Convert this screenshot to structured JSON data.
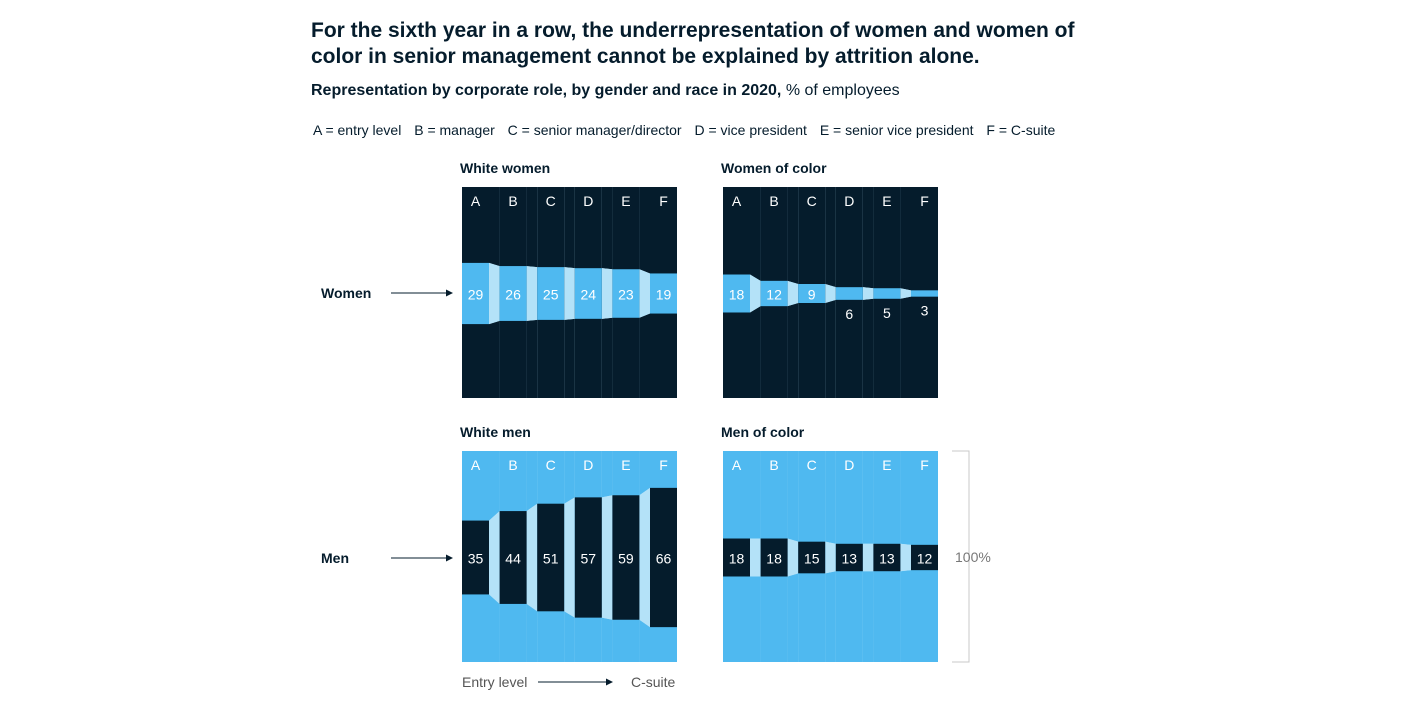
{
  "headline": "For the sixth year in a row, the underrepresentation of women and women of color in senior management cannot be explained by attrition alone.",
  "subtitle_bold": "Representation by corporate role, by gender and race in 2020,",
  "subtitle_unit": " % of employees",
  "key": [
    "A = entry level",
    "B = manager",
    "C = senior manager/director",
    "D = vice president",
    "E = senior vice president",
    "F = C-suite"
  ],
  "colors": {
    "dark": "#051c2c",
    "blue": "#4fb9f0",
    "pale": "#b4e2f8",
    "gray": "#999999"
  },
  "chart_data": {
    "type": "bar",
    "categories": [
      "A",
      "B",
      "C",
      "D",
      "E",
      "F"
    ],
    "row_labels": [
      "Women",
      "Men"
    ],
    "scale_label": "100%",
    "axis_from": "Entry level",
    "axis_to": "C-suite",
    "ylim": [
      0,
      100
    ],
    "panels": [
      {
        "name": "White women",
        "values": [
          29,
          26,
          25,
          24,
          23,
          19
        ],
        "highlight": "blue"
      },
      {
        "name": "Women of color",
        "values": [
          18,
          12,
          9,
          6,
          5,
          3
        ],
        "highlight": "blue"
      },
      {
        "name": "White men",
        "values": [
          35,
          44,
          51,
          57,
          59,
          66
        ],
        "highlight": "dark"
      },
      {
        "name": "Men of color",
        "values": [
          18,
          18,
          15,
          13,
          13,
          12
        ],
        "highlight": "dark"
      }
    ]
  }
}
